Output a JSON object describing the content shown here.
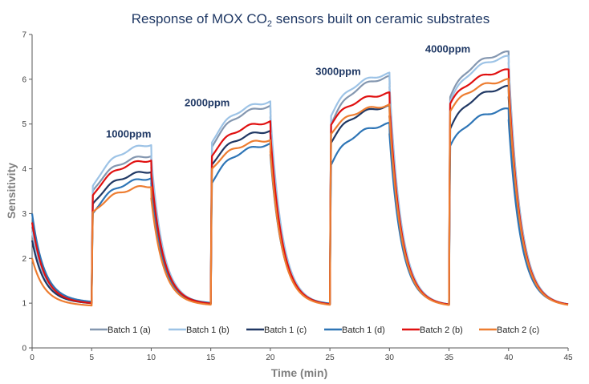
{
  "chart_data": {
    "type": "line",
    "title_main": "Response of MOX CO",
    "title_sub": "2",
    "title_rest": " sensors built on ceramic substrates",
    "xlabel": "Time (min)",
    "ylabel": "Sensitivity",
    "xlim": [
      0,
      45
    ],
    "ylim": [
      0,
      7
    ],
    "xticks": [
      0,
      5,
      10,
      15,
      20,
      25,
      30,
      35,
      40,
      45
    ],
    "yticks": [
      0,
      1,
      2,
      3,
      4,
      5,
      6,
      7
    ],
    "annotations": [
      {
        "text": "1000ppm",
        "x": 6.2,
        "y": 4.7
      },
      {
        "text": "2000ppm",
        "x": 12.8,
        "y": 5.4
      },
      {
        "text": "3000ppm",
        "x": 23.8,
        "y": 6.1
      },
      {
        "text": "4000ppm",
        "x": 33.0,
        "y": 6.6
      }
    ],
    "legend_position": "bottom",
    "series": [
      {
        "name": "Batch 1 (a)",
        "color": "#8497b0",
        "start": 2.7,
        "baseline": [
          1.05,
          1.0,
          0.98,
          0.97,
          0.97
        ],
        "plateau": [
          [
            3.5,
            4.3
          ],
          [
            4.5,
            5.4
          ],
          [
            5.0,
            6.05
          ],
          [
            5.6,
            6.6
          ]
        ]
      },
      {
        "name": "Batch 1 (b)",
        "color": "#9dc3e6",
        "start": 2.6,
        "baseline": [
          1.05,
          1.0,
          0.98,
          0.97,
          0.97
        ],
        "plateau": [
          [
            3.6,
            4.55
          ],
          [
            4.6,
            5.5
          ],
          [
            5.2,
            6.12
          ],
          [
            5.5,
            6.5
          ]
        ]
      },
      {
        "name": "Batch 1 (c)",
        "color": "#203864",
        "start": 2.4,
        "baseline": [
          1.05,
          1.0,
          0.98,
          0.97,
          0.97
        ],
        "plateau": [
          [
            3.2,
            3.95
          ],
          [
            4.1,
            4.85
          ],
          [
            4.6,
            5.4
          ],
          [
            4.9,
            5.83
          ]
        ]
      },
      {
        "name": "Batch 1 (d)",
        "color": "#2e75b6",
        "start": 3.0,
        "baseline": [
          1.08,
          1.02,
          1.0,
          0.98,
          0.98
        ],
        "plateau": [
          [
            3.0,
            3.8
          ],
          [
            3.7,
            4.55
          ],
          [
            4.1,
            5.0
          ],
          [
            4.5,
            5.33
          ]
        ]
      },
      {
        "name": "Batch 2 (b)",
        "color": "#e01010",
        "start": 2.8,
        "baseline": [
          1.05,
          1.0,
          0.98,
          0.97,
          0.97
        ],
        "plateau": [
          [
            3.4,
            4.2
          ],
          [
            4.3,
            5.05
          ],
          [
            5.0,
            5.68
          ],
          [
            5.45,
            6.2
          ]
        ]
      },
      {
        "name": "Batch 2 (c)",
        "color": "#ed7d31",
        "start": 2.0,
        "baseline": [
          1.0,
          0.98,
          0.97,
          0.96,
          0.96
        ],
        "plateau": [
          [
            3.0,
            3.62
          ],
          [
            4.0,
            4.65
          ],
          [
            4.8,
            5.42
          ],
          [
            5.3,
            5.98
          ]
        ]
      }
    ]
  }
}
